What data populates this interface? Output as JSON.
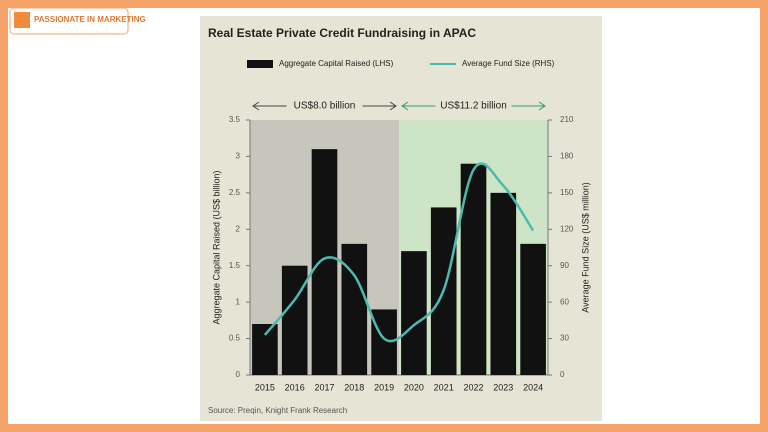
{
  "logo": {
    "text": "PASSIONATE IN MARKETING"
  },
  "chart_data": {
    "type": "bar",
    "title": "Real Estate Private Credit Fundraising in APAC",
    "categories": [
      "2015",
      "2016",
      "2017",
      "2018",
      "2019",
      "2020",
      "2021",
      "2022",
      "2023",
      "2024"
    ],
    "series": [
      {
        "name": "Aggregate Capital Raised (LHS)",
        "type": "bar",
        "color": "#111111",
        "values": [
          0.7,
          1.5,
          3.1,
          1.8,
          0.9,
          1.7,
          2.3,
          2.9,
          2.5,
          1.8
        ]
      },
      {
        "name": "Average Fund Size (RHS)",
        "type": "line",
        "axis": "y2",
        "color": "#4dbab1",
        "values": [
          33,
          62,
          96,
          82,
          30,
          41,
          70,
          169,
          156,
          119
        ]
      }
    ],
    "annotations": [
      "US$8.0 billion",
      "US$11.2 billion"
    ],
    "ylabel": "Aggregate Capital Raised (US$ billion)",
    "y2label": "Average Fund Size (US$ million)",
    "ylim": [
      0,
      3.5
    ],
    "yticks": [
      0,
      0.5,
      1,
      1.5,
      2,
      2.5,
      3,
      3.5
    ],
    "y2lim": [
      0,
      210
    ],
    "y2ticks": [
      0,
      30,
      60,
      90,
      120,
      150,
      180,
      210
    ],
    "source": "Source: Preqin, Knight Frank Research"
  }
}
